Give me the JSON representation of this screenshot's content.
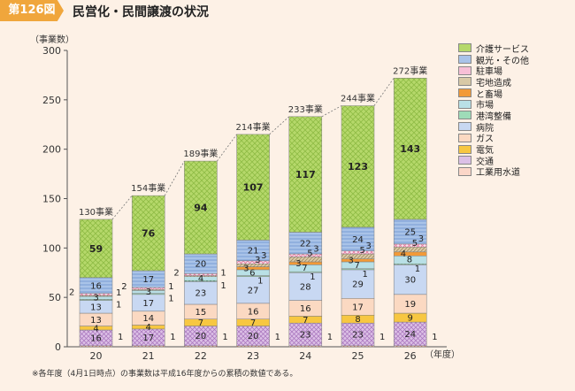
{
  "header": {
    "badge": "第126図",
    "title": "民営化・民間譲渡の状況"
  },
  "unit_label": "（事業数）",
  "x_axis_unit": "（年度）",
  "footnote": "※各年度（4月1日時点）の事業数は平成16年度からの累積の数値である。",
  "colors": {
    "介護サービス": "#b5d86a",
    "観光・その他": "#a9c3e8",
    "駐車場": "#f7bfd6",
    "宅地造成": "#cbb68f",
    "と畜場": "#f29a38",
    "市場": "#b9e0e6",
    "港湾整備": "#6cc99a",
    "病院": "#c8d8f2",
    "ガス": "#fbd9c2",
    "電気": "#f7c742",
    "交通": "#cfa7dc",
    "工業用水道": "#f5b29a"
  },
  "chart_data": {
    "type": "bar",
    "stacked": true,
    "title": "民営化・民間譲渡の状況",
    "xlabel": "（年度）",
    "ylabel": "（事業数）",
    "ylim": [
      0,
      300
    ],
    "yticks": [
      "0",
      "50",
      "100",
      "150",
      "200",
      "250",
      "300"
    ],
    "categories": [
      "20",
      "21",
      "22",
      "23",
      "24",
      "25",
      "26"
    ],
    "totals": [
      "130事業",
      "154事業",
      "189事業",
      "214事業",
      "233事業",
      "244事業",
      "272事業"
    ],
    "series": [
      {
        "name": "工業用水道",
        "values": [
          1,
          1,
          1,
          1,
          1,
          1,
          1
        ]
      },
      {
        "name": "交通",
        "values": [
          16,
          17,
          20,
          20,
          23,
          23,
          24
        ]
      },
      {
        "name": "電気",
        "values": [
          4,
          4,
          7,
          7,
          7,
          8,
          9
        ]
      },
      {
        "name": "ガス",
        "values": [
          13,
          14,
          15,
          16,
          16,
          17,
          19
        ]
      },
      {
        "name": "病院",
        "values": [
          13,
          17,
          23,
          27,
          28,
          29,
          30
        ]
      },
      {
        "name": "港湾整備",
        "values": [
          1,
          1,
          1,
          1,
          1,
          1,
          1
        ]
      },
      {
        "name": "市場",
        "values": [
          3,
          3,
          4,
          6,
          7,
          7,
          8
        ]
      },
      {
        "name": "と畜場",
        "values": [
          0,
          0,
          0,
          3,
          3,
          3,
          4
        ]
      },
      {
        "name": "宅地造成",
        "values": [
          1,
          1,
          1,
          3,
          5,
          5,
          5
        ]
      },
      {
        "name": "駐車場",
        "values": [
          2,
          2,
          2,
          3,
          3,
          3,
          3
        ]
      },
      {
        "name": "観光・その他",
        "values": [
          16,
          17,
          20,
          21,
          22,
          24,
          25
        ]
      },
      {
        "name": "介護サービス",
        "values": [
          59,
          76,
          94,
          107,
          117,
          123,
          143
        ]
      }
    ],
    "legend": [
      "介護サービス",
      "観光・その他",
      "駐車場",
      "宅地造成",
      "と畜場",
      "市場",
      "港湾整備",
      "病院",
      "ガス",
      "電気",
      "交通",
      "工業用水道"
    ],
    "legend_position": "right"
  }
}
